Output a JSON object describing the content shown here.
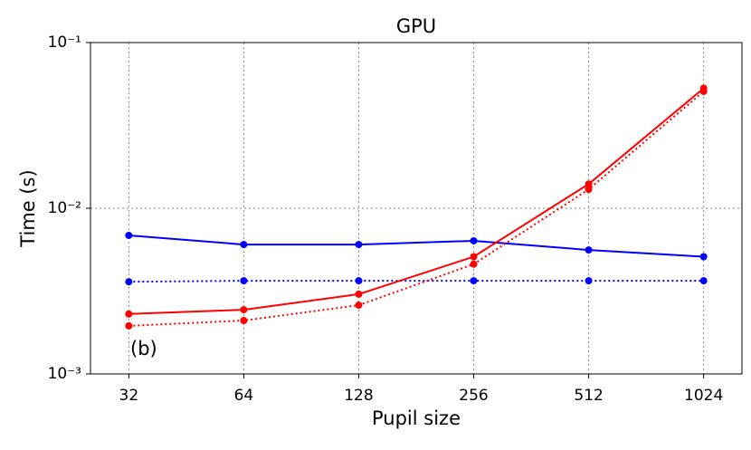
{
  "chart_data": {
    "type": "line",
    "title": "GPU",
    "x_label": "Pupil size",
    "y_label": "Time (s)",
    "annotation": "(b)",
    "x": [
      32,
      64,
      128,
      256,
      512,
      1024
    ],
    "xscale": "log",
    "yscale": "log",
    "xlim": [
      25.4,
      1290
    ],
    "ylim": [
      0.001,
      0.1
    ],
    "xticks": [
      32,
      64,
      128,
      256,
      512,
      1024
    ],
    "yticks": [
      {
        "value": 0.001,
        "label": "10⁻³"
      },
      {
        "value": 0.01,
        "label": "10⁻²"
      },
      {
        "value": 0.1,
        "label": "10⁻¹"
      }
    ],
    "grid": true,
    "series": [
      {
        "color": "#0000ff",
        "linestyle": "solid",
        "values": [
          0.00686,
          0.00604,
          0.00604,
          0.00636,
          0.0056,
          0.0051
        ]
      },
      {
        "color": "#0000ff",
        "linestyle": "dotted",
        "values": [
          0.0036,
          0.00365,
          0.00365,
          0.00365,
          0.00365,
          0.00365
        ]
      },
      {
        "color": "#ff0000",
        "linestyle": "solid",
        "values": [
          0.0023,
          0.00244,
          0.00303,
          0.0051,
          0.014,
          0.053
        ]
      },
      {
        "color": "#ff0000",
        "linestyle": "dotted",
        "values": [
          0.00195,
          0.0021,
          0.0026,
          0.0046,
          0.013,
          0.0507
        ]
      }
    ]
  }
}
